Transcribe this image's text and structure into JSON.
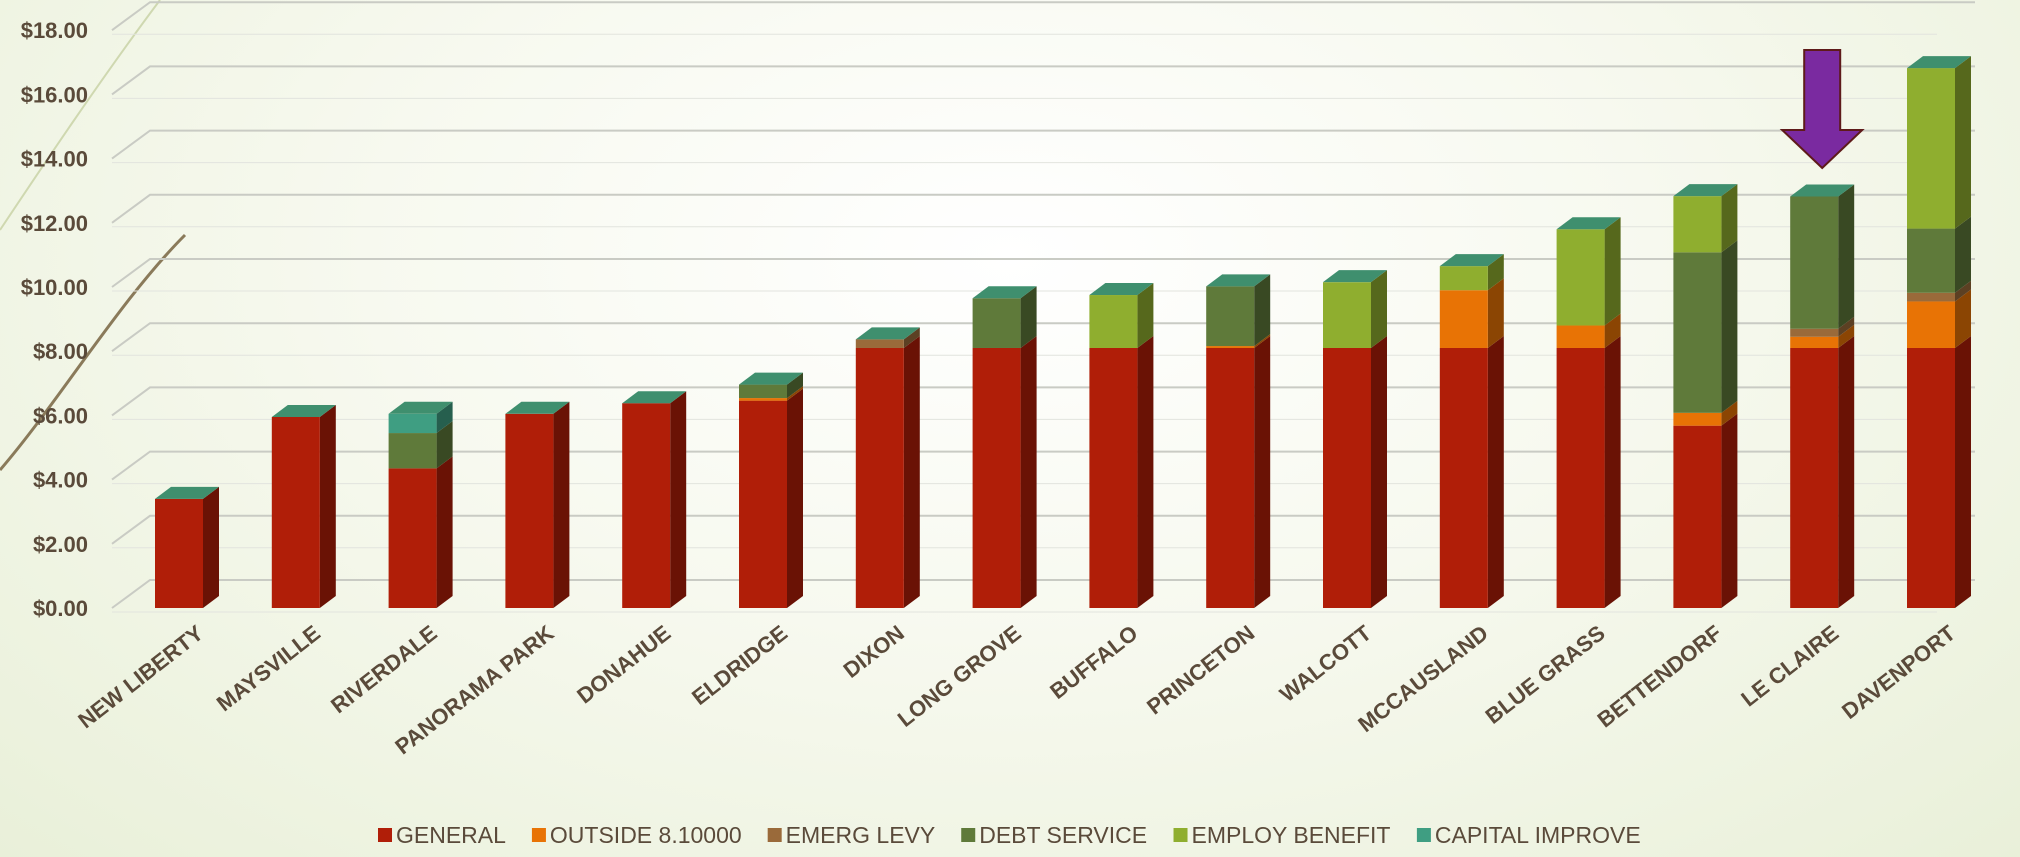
{
  "chart_data": {
    "type": "bar",
    "stacked": true,
    "style": "3d-column",
    "title": "",
    "xlabel": "",
    "ylabel": "",
    "ylim": [
      0,
      18
    ],
    "y_ticks": [
      "$0.00",
      "$2.00",
      "$4.00",
      "$6.00",
      "$8.00",
      "$10.00",
      "$12.00",
      "$14.00",
      "$16.00",
      "$18.00"
    ],
    "grid": true,
    "legend_position": "bottom",
    "categories": [
      "NEW LIBERTY",
      "MAYSVILLE",
      "RIVERDALE",
      "PANORAMA PARK",
      "DONAHUE",
      "ELDRIDGE",
      "DIXON",
      "LONG GROVE",
      "BUFFALO",
      "PRINCETON",
      "WALCOTT",
      "MCCAUSLAND",
      "BLUE GRASS",
      "BETTENDORF",
      "LE CLAIRE",
      "DAVENPORT"
    ],
    "series": [
      {
        "name": "GENERAL",
        "color": "#b01e08",
        "values": [
          3.4,
          5.95,
          4.35,
          6.05,
          6.38,
          6.46,
          8.1,
          8.1,
          8.1,
          8.1,
          8.1,
          8.1,
          8.1,
          5.68,
          8.1,
          8.1
        ]
      },
      {
        "name": "OUTSIDE 8.10000",
        "color": "#e87305",
        "values": [
          0,
          0,
          0,
          0,
          0,
          0.08,
          0,
          0,
          0,
          0.06,
          0,
          1.8,
          0.7,
          0.4,
          0.35,
          1.45
        ]
      },
      {
        "name": "EMERG LEVY",
        "color": "#9a6a3a",
        "values": [
          0,
          0,
          0,
          0,
          0,
          0,
          0.27,
          0,
          0,
          0,
          0,
          0,
          0,
          0,
          0.25,
          0.27
        ]
      },
      {
        "name": "DEBT SERVICE",
        "color": "#5f7a3a",
        "values": [
          0,
          0,
          1.1,
          0,
          0,
          0.42,
          0,
          1.55,
          0,
          1.86,
          0,
          0,
          0,
          5.0,
          4.12,
          2.0
        ]
      },
      {
        "name": "EMPLOY BENEFIT",
        "color": "#8fae2f",
        "values": [
          0,
          0,
          0,
          0,
          0,
          0,
          0,
          0,
          1.65,
          0,
          2.05,
          0.75,
          3.0,
          1.75,
          0,
          5.0
        ]
      },
      {
        "name": "CAPITAL IMPROVE",
        "color": "#3f9e82",
        "values": [
          0,
          0,
          0.6,
          0,
          0,
          0,
          0,
          0,
          0,
          0,
          0,
          0,
          0,
          0,
          0,
          0
        ]
      }
    ],
    "annotations": [
      {
        "type": "down-arrow",
        "category": "LE CLAIRE",
        "color": "#7a2aa0"
      }
    ]
  }
}
